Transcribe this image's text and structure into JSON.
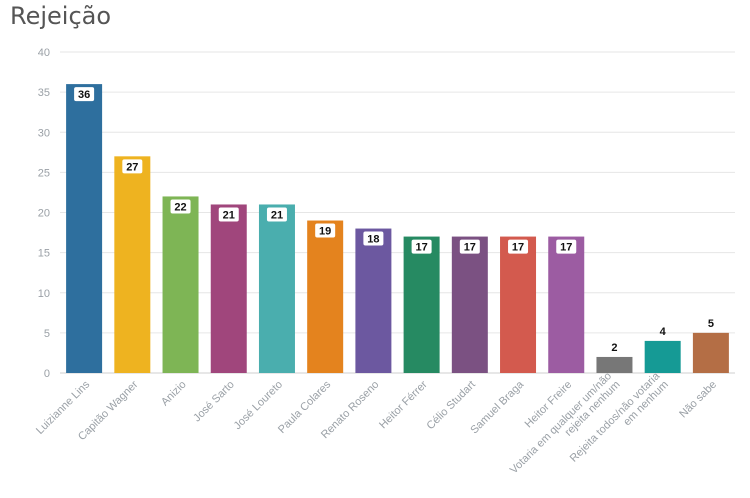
{
  "title": "Rejeição",
  "chart_data": {
    "type": "bar",
    "title": "Rejeição",
    "xlabel": "",
    "ylabel": "",
    "ylim": [
      0,
      40
    ],
    "yticks": [
      0,
      5,
      10,
      15,
      20,
      25,
      30,
      35,
      40
    ],
    "grid": true,
    "legend": "none",
    "categories": [
      "Luizianne Lins",
      "Capitão Wagner",
      "Anizio",
      "José Sarto",
      "José Loureto",
      "Paula Colares",
      "Renato Roseno",
      "Heitor Férrer",
      "Célio Studart",
      "Samuel Braga",
      "Heitor Freire",
      "Votaria em qualquer um/não rejeita nenhum",
      "Rejeita todos/não votaria em nenhum",
      "Não sabe"
    ],
    "values": [
      36,
      27,
      22,
      21,
      21,
      19,
      18,
      17,
      17,
      17,
      17,
      2,
      4,
      5
    ],
    "colors": [
      "#2e6f9e",
      "#eeb320",
      "#7eb555",
      "#a0467c",
      "#4aaeae",
      "#e4831e",
      "#6c58a0",
      "#268a62",
      "#7b5182",
      "#d35a4e",
      "#9c5ca2",
      "#777777",
      "#159a95",
      "#b46e45"
    ]
  }
}
